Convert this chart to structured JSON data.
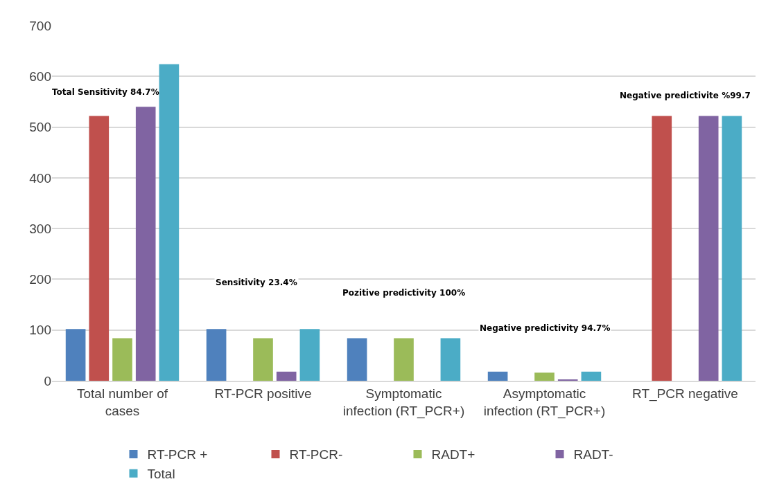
{
  "chart_data": {
    "type": "bar",
    "categories": [
      "Total number of cases",
      "RT-PCR positive",
      "Symptomatic infection (RT_PCR+)",
      "Asymptomatic infection (RT_PCR+)",
      "RT_PCR negative"
    ],
    "series": [
      {
        "name": "RT-PCR +",
        "color": "#4f81bd",
        "values": [
          102,
          102,
          84,
          18,
          0
        ]
      },
      {
        "name": "RT-PCR-",
        "color": "#c0504d",
        "values": [
          522,
          0,
          0,
          0,
          522
        ]
      },
      {
        "name": "RADT+",
        "color": "#9bbb59",
        "values": [
          84,
          84,
          84,
          16,
          0
        ]
      },
      {
        "name": "RADT-",
        "color": "#8064a2",
        "values": [
          540,
          18,
          0,
          2,
          522
        ]
      },
      {
        "name": "Total",
        "color": "#4bacc6",
        "values": [
          624,
          102,
          84,
          18,
          522
        ]
      }
    ],
    "annotations": [
      "Total Sensitivity 84.7%",
      "Sensitivity 23.4%",
      "Pozitive predictivity 100%",
      "Negative predictivity 94.7%",
      "Negative predictivite %99.7"
    ],
    "ylim": [
      0,
      700
    ],
    "yticks": [
      0,
      100,
      200,
      300,
      400,
      500,
      600,
      700
    ],
    "grid": "y",
    "legend": "bottom"
  }
}
